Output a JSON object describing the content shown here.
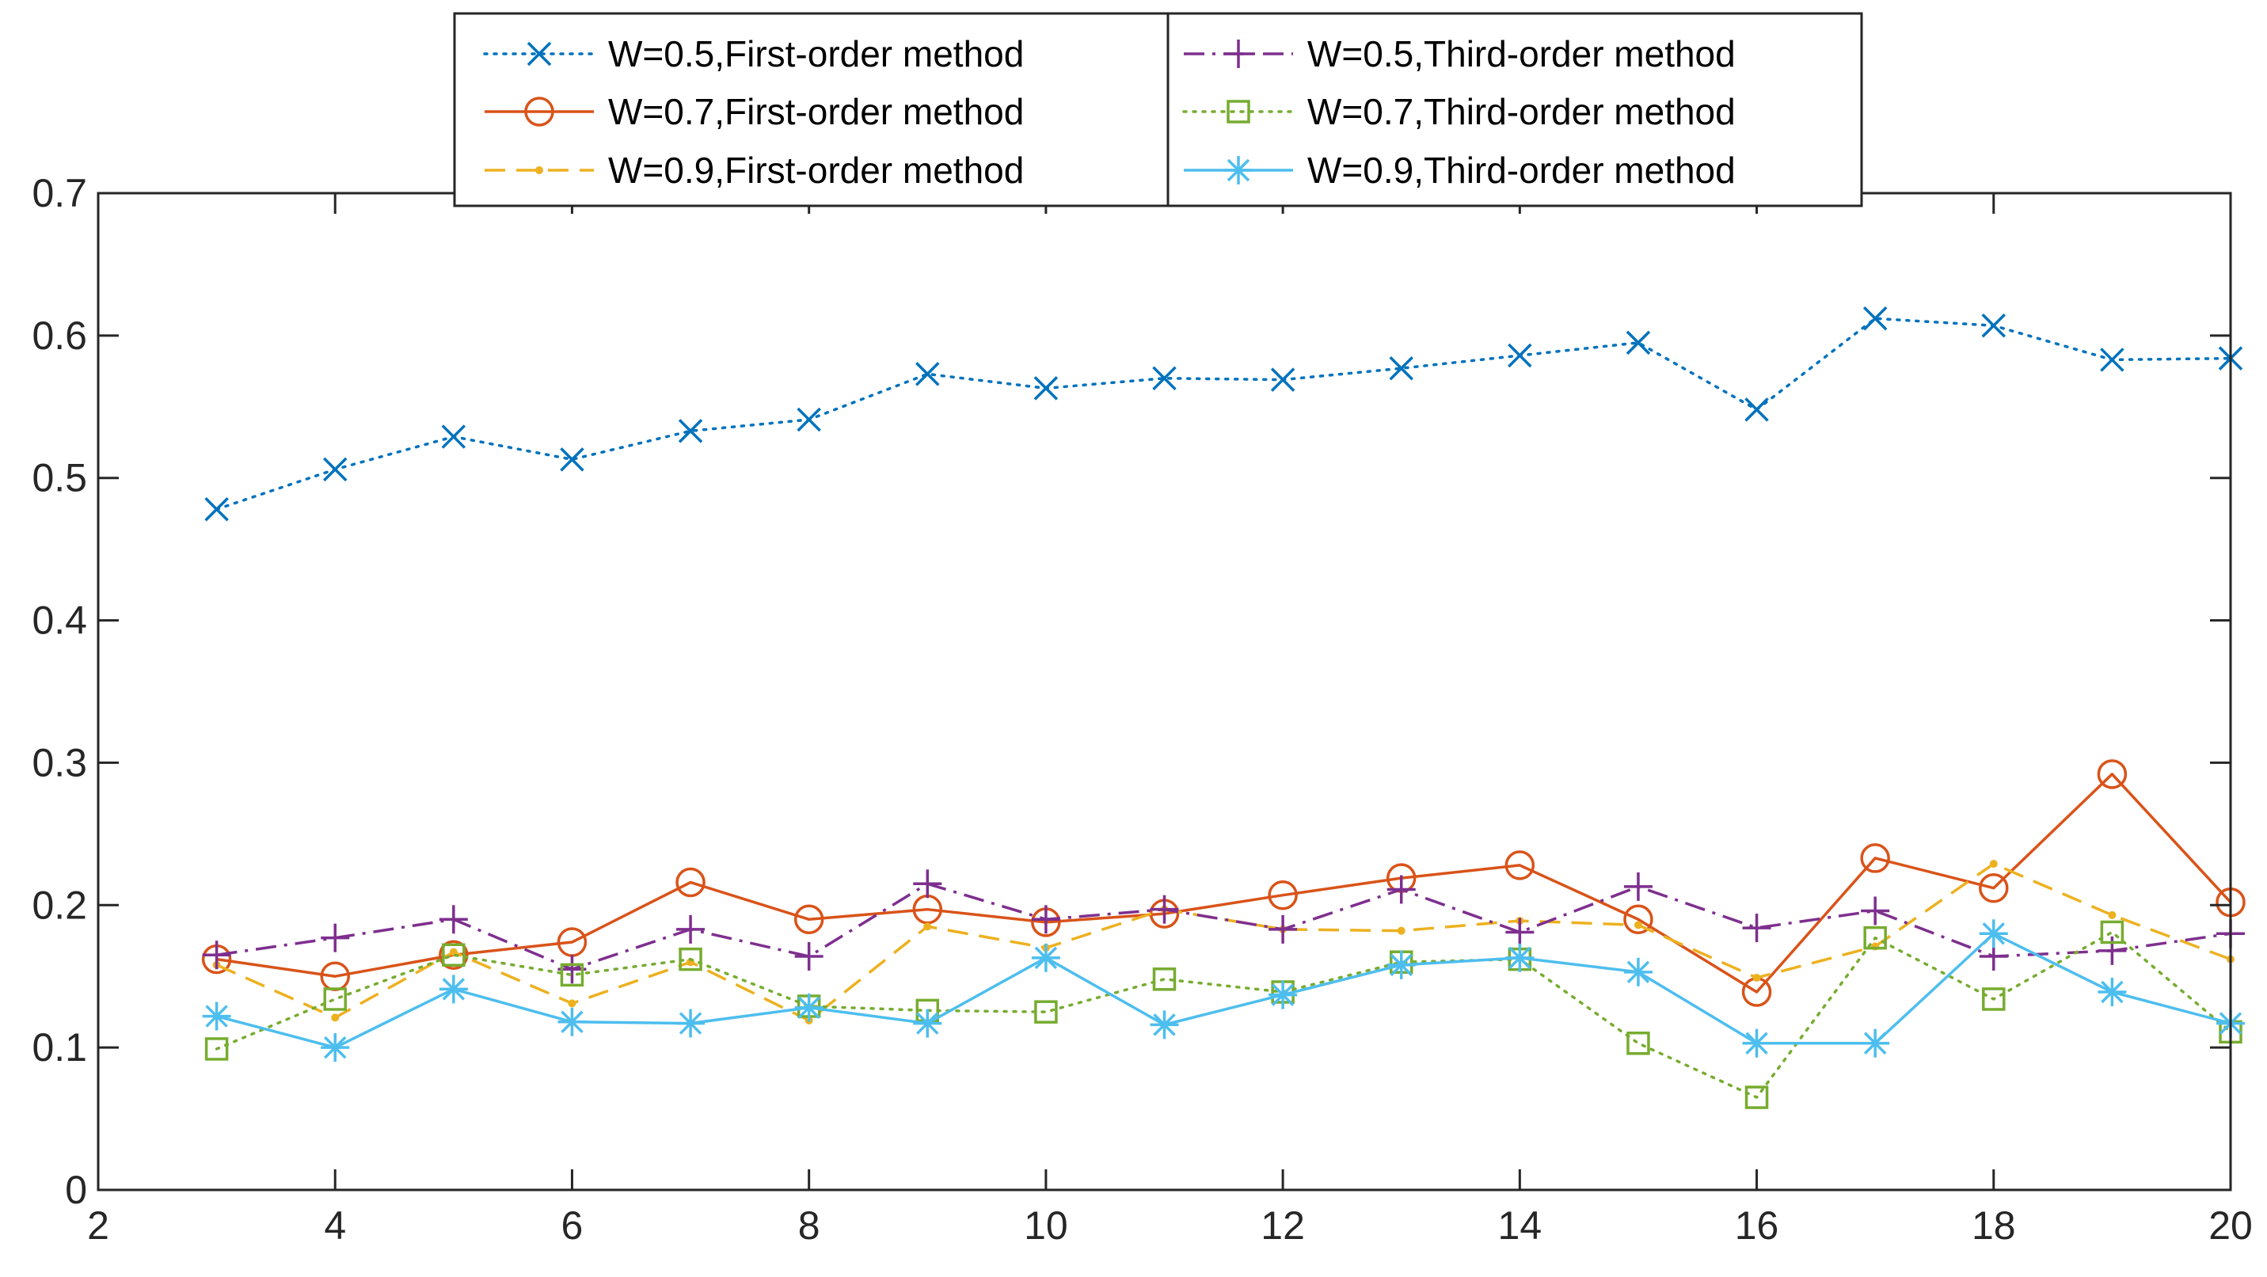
{
  "chart_data": {
    "type": "line",
    "title": "",
    "xlabel": "",
    "ylabel": "",
    "xlim": [
      2,
      20
    ],
    "ylim": [
      0,
      0.7
    ],
    "xticks": [
      "2",
      "4",
      "6",
      "8",
      "10",
      "12",
      "14",
      "16",
      "18",
      "20"
    ],
    "yticks": [
      "0",
      "0.1",
      "0.2",
      "0.3",
      "0.4",
      "0.5",
      "0.6",
      "0.7"
    ],
    "grid": false,
    "legend_position": "top-center (outside, above plot)",
    "x": [
      3,
      4,
      5,
      6,
      7,
      8,
      9,
      10,
      11,
      12,
      13,
      14,
      15,
      16,
      17,
      18,
      19,
      20
    ],
    "series": [
      {
        "name": "W=0.5,First-order method",
        "color": "#0072BD",
        "line": "dotted",
        "marker": "x",
        "values": [
          0.478,
          0.506,
          0.529,
          0.513,
          0.533,
          0.541,
          0.573,
          0.563,
          0.57,
          0.569,
          0.577,
          0.586,
          0.595,
          0.548,
          0.612,
          0.607,
          0.583,
          0.584
        ]
      },
      {
        "name": "W=0.7,First-order method",
        "color": "#D95319",
        "line": "solid",
        "marker": "o",
        "values": [
          0.162,
          0.15,
          0.165,
          0.174,
          0.216,
          0.19,
          0.197,
          0.188,
          0.194,
          0.207,
          0.219,
          0.228,
          0.19,
          0.139,
          0.233,
          0.212,
          0.292,
          0.202
        ]
      },
      {
        "name": "W=0.9,First-order method",
        "color": "#EDB120",
        "line": "dashed",
        "marker": "dot",
        "values": [
          0.158,
          0.121,
          0.167,
          0.131,
          0.16,
          0.119,
          0.185,
          0.17,
          0.197,
          0.183,
          0.182,
          0.189,
          0.186,
          0.149,
          0.171,
          0.229,
          0.193,
          0.162
        ]
      },
      {
        "name": "W=0.5,Third-order method",
        "color": "#7E2F8E",
        "line": "dashdot",
        "marker": "+",
        "values": [
          0.165,
          0.177,
          0.19,
          0.155,
          0.183,
          0.164,
          0.215,
          0.19,
          0.197,
          0.183,
          0.211,
          0.181,
          0.213,
          0.184,
          0.196,
          0.164,
          0.168,
          0.18
        ]
      },
      {
        "name": "W=0.7,Third-order method",
        "color": "#77AC30",
        "line": "dotted",
        "marker": "square",
        "values": [
          0.099,
          0.134,
          0.165,
          0.151,
          0.162,
          0.129,
          0.126,
          0.125,
          0.148,
          0.139,
          0.16,
          0.162,
          0.103,
          0.065,
          0.177,
          0.134,
          0.181,
          0.111
        ]
      },
      {
        "name": "W=0.9,Third-order method",
        "color": "#4DBEEE",
        "line": "solid",
        "marker": "asterisk",
        "values": [
          0.122,
          0.1,
          0.141,
          0.118,
          0.117,
          0.128,
          0.117,
          0.163,
          0.116,
          0.137,
          0.158,
          0.163,
          0.153,
          0.103,
          0.103,
          0.18,
          0.139,
          0.117
        ]
      }
    ]
  }
}
